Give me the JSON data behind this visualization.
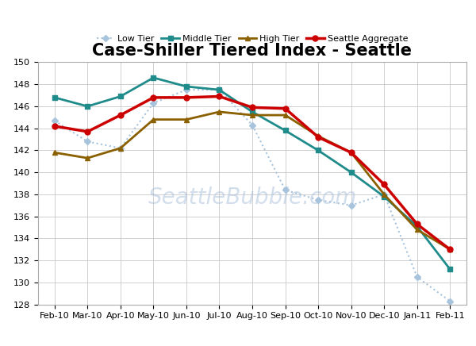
{
  "title": "Case-Shiller Tiered Index - Seattle",
  "x_labels": [
    "Feb-10",
    "Mar-10",
    "Apr-10",
    "May-10",
    "Jun-10",
    "Jul-10",
    "Aug-10",
    "Sep-10",
    "Oct-10",
    "Nov-10",
    "Dec-10",
    "Jan-11",
    "Feb-11"
  ],
  "low_tier": [
    144.7,
    142.8,
    142.2,
    146.3,
    147.5,
    147.5,
    144.3,
    138.4,
    137.5,
    137.0,
    138.0,
    130.5,
    128.3
  ],
  "middle_tier": [
    146.8,
    146.0,
    146.9,
    148.6,
    147.8,
    147.5,
    145.5,
    143.8,
    142.0,
    140.0,
    137.8,
    135.1,
    131.2
  ],
  "high_tier": [
    141.8,
    141.3,
    142.2,
    144.8,
    144.8,
    145.5,
    145.2,
    145.2,
    143.3,
    141.8,
    138.0,
    134.8,
    133.0
  ],
  "seattle_agg": [
    144.2,
    143.7,
    145.2,
    146.8,
    146.8,
    146.9,
    145.9,
    145.8,
    143.2,
    141.8,
    138.9,
    135.3,
    133.0
  ],
  "low_tier_color": "#a8c4dc",
  "middle_tier_color": "#1f8b8b",
  "high_tier_color": "#8b6000",
  "seattle_agg_color": "#cc0000",
  "ylim_min": 128,
  "ylim_max": 150,
  "ytick_step": 2,
  "background_color": "#ffffff",
  "grid_color": "#c8c8c8",
  "watermark": "SeattleBubble.com",
  "title_fontsize": 15,
  "legend_fontsize": 8,
  "tick_fontsize": 8
}
